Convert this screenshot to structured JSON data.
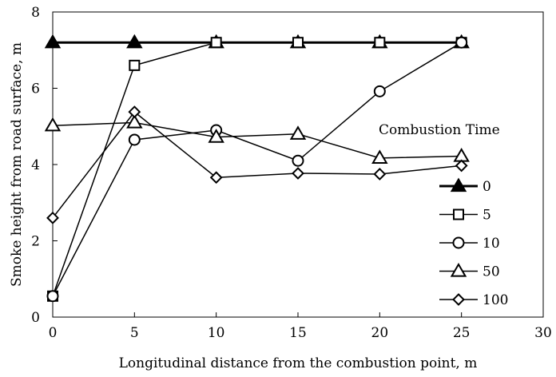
{
  "chart_data": {
    "type": "line",
    "title": "",
    "xlabel": "Longitudinal distance from the combustion point, m",
    "ylabel": "Smoke height from road surface, m",
    "xlim": [
      0,
      30
    ],
    "ylim": [
      0,
      8
    ],
    "xticks": [
      0,
      5,
      10,
      15,
      20,
      25,
      30
    ],
    "yticks": [
      0,
      2,
      4,
      6,
      8
    ],
    "grid": false,
    "legend_title": "Combustion Time",
    "legend_position": "right",
    "x": [
      0,
      5,
      10,
      15,
      20,
      25
    ],
    "series": [
      {
        "name": "0",
        "marker": "triangle-filled",
        "values": [
          7.2,
          7.2,
          7.2,
          7.2,
          7.2,
          7.2
        ]
      },
      {
        "name": "5",
        "marker": "square",
        "values": [
          0.55,
          6.6,
          7.2,
          7.2,
          7.2,
          7.2
        ]
      },
      {
        "name": "10",
        "marker": "circle",
        "values": [
          0.55,
          4.65,
          4.9,
          4.1,
          5.92,
          7.2
        ]
      },
      {
        "name": "50",
        "marker": "triangle",
        "values": [
          5.02,
          5.1,
          4.72,
          4.8,
          4.17,
          4.22
        ]
      },
      {
        "name": "100",
        "marker": "diamond",
        "values": [
          2.6,
          5.38,
          3.66,
          3.77,
          3.75,
          3.97
        ]
      }
    ]
  }
}
